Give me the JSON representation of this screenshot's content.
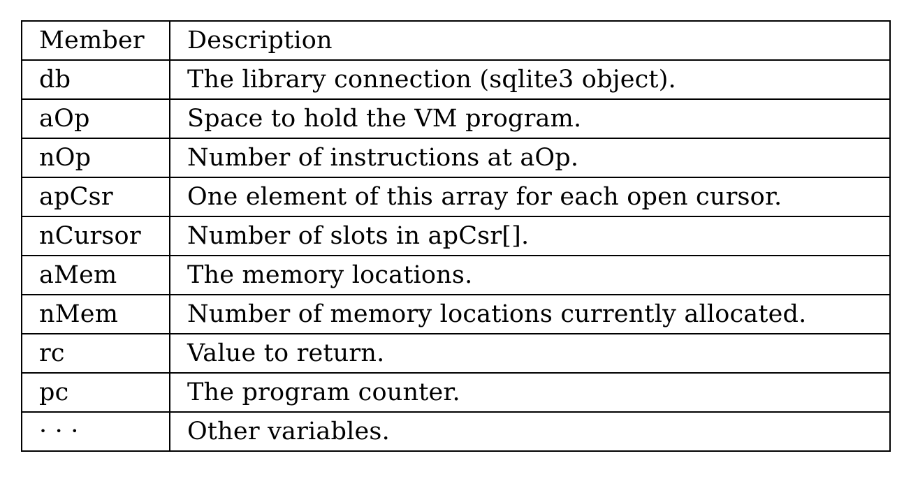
{
  "table": {
    "headers": [
      "Member",
      "Description"
    ],
    "rows": [
      {
        "member": "db",
        "description": "The library connection (sqlite3 object)."
      },
      {
        "member": "aOp",
        "description": "Space to hold the VM program."
      },
      {
        "member": "nOp",
        "description": "Number of instructions at aOp."
      },
      {
        "member": "apCsr",
        "description": "One element of this array for each open cursor."
      },
      {
        "member": "nCursor",
        "description": "Number of slots in apCsr[]."
      },
      {
        "member": "aMem",
        "description": "The memory locations."
      },
      {
        "member": "nMem",
        "description": "Number of memory locations currently allocated."
      },
      {
        "member": "rc",
        "description": "Value to return."
      },
      {
        "member": "pc",
        "description": "The program counter."
      },
      {
        "member": "· · ·",
        "description": "Other variables."
      }
    ]
  }
}
